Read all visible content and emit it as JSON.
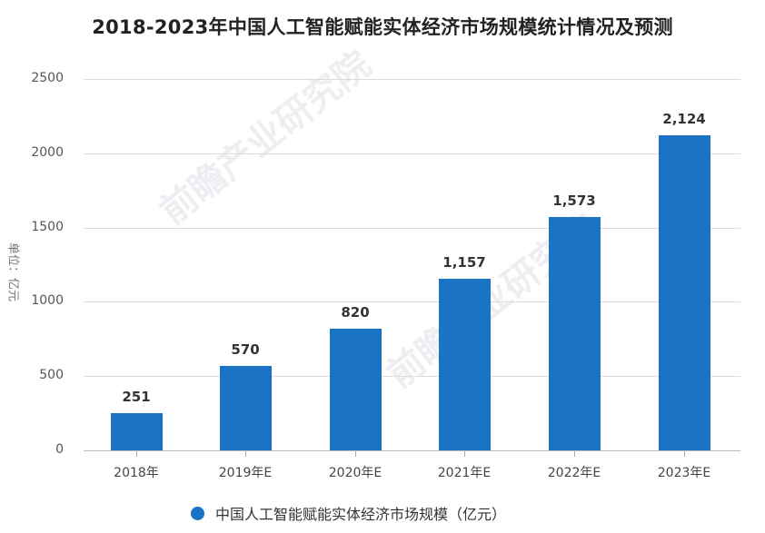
{
  "title": "2018-2023年中国人工智能赋能实体经济市场规模统计情况及预测",
  "y_axis_unit": "单位：亿元",
  "watermark": "前瞻产业研究院",
  "colors": {
    "bar": "#1a73c4",
    "grid": "#dcdcdc"
  },
  "legend": {
    "label": "中国人工智能赋能实体经济市场规模（亿元）"
  },
  "chart_data": {
    "type": "bar",
    "title": "2018-2023年中国人工智能赋能实体经济市场规模统计情况及预测",
    "xlabel": "",
    "ylabel": "单位：亿元",
    "categories": [
      "2018年",
      "2019年E",
      "2020年E",
      "2021年E",
      "2022年E",
      "2023年E"
    ],
    "values": [
      251,
      570,
      820,
      1157,
      1573,
      2124
    ],
    "value_labels": [
      "251",
      "570",
      "820",
      "1,157",
      "1,573",
      "2,124"
    ],
    "series": [
      {
        "name": "中国人工智能赋能实体经济市场规模（亿元）",
        "values": [
          251,
          570,
          820,
          1157,
          1573,
          2124
        ]
      }
    ],
    "ylim": [
      0,
      2500
    ],
    "yticks": [
      "0",
      "500",
      "1000",
      "1500",
      "2000",
      "2500"
    ],
    "grid": true,
    "legend_position": "bottom"
  }
}
